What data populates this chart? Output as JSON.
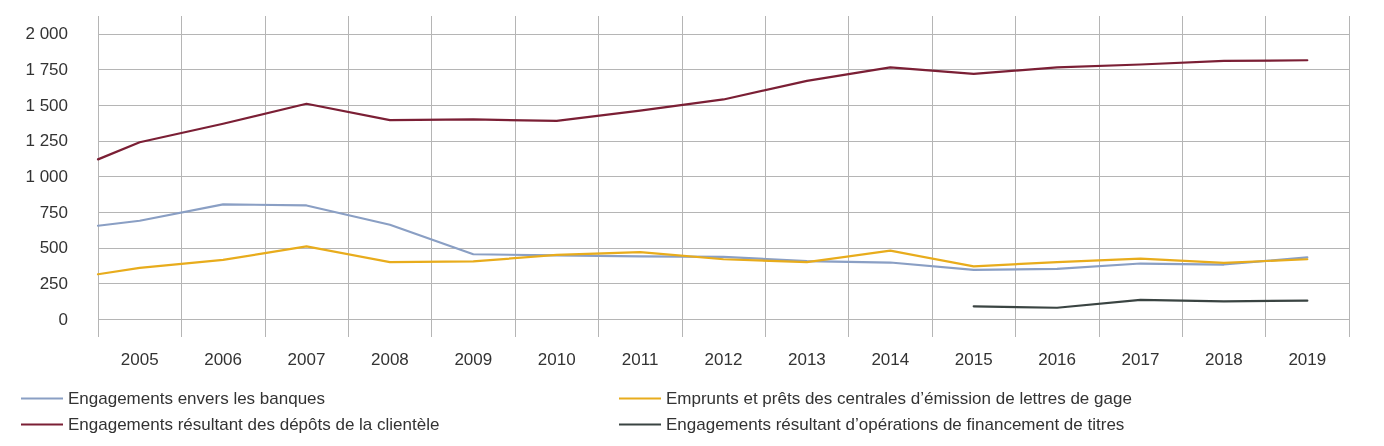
{
  "chart_data": {
    "type": "line",
    "x": [
      2004.5,
      2005,
      2006,
      2007,
      2008,
      2009,
      2010,
      2011,
      2012,
      2013,
      2014,
      2015,
      2016,
      2017,
      2018,
      2019
    ],
    "series": [
      {
        "name": "Engagements envers les banques",
        "color": "#8a9fc4",
        "values": [
          655,
          690,
          805,
          797,
          662,
          455,
          447,
          440,
          437,
          407,
          397,
          345,
          352,
          390,
          383,
          433
        ]
      },
      {
        "name": "Emprunts et prêts des centrales d’émission de lettres de gage",
        "color": "#e8ac1c",
        "values": [
          315,
          360,
          415,
          510,
          400,
          405,
          450,
          470,
          420,
          400,
          480,
          370,
          400,
          425,
          395,
          420
        ]
      },
      {
        "name": "Engagements résultant des dépôts de la clientèle",
        "color": "#7b1f35",
        "values": [
          1120,
          1240,
          1370,
          1510,
          1395,
          1400,
          1390,
          1462,
          1540,
          1670,
          1765,
          1720,
          1765,
          1785,
          1810,
          1815
        ]
      },
      {
        "name": "Engagements résultant d’opérations de financement de titres",
        "color": "#3a4442",
        "x": [
          2015,
          2016,
          2017,
          2018,
          2019
        ],
        "values": [
          90,
          80,
          135,
          125,
          130
        ]
      }
    ],
    "xlim": [
      2004.5,
      2019.5
    ],
    "xticks": [
      {
        "value": 2004.5,
        "label": null
      },
      {
        "value": 2005,
        "label": "2005"
      },
      {
        "value": 2005.5,
        "label": null
      },
      {
        "value": 2006,
        "label": "2006"
      },
      {
        "value": 2006.5,
        "label": null
      },
      {
        "value": 2007,
        "label": "2007"
      },
      {
        "value": 2007.5,
        "label": null
      },
      {
        "value": 2008,
        "label": "2008"
      },
      {
        "value": 2008.5,
        "label": null
      },
      {
        "value": 2009,
        "label": "2009"
      },
      {
        "value": 2009.5,
        "label": null
      },
      {
        "value": 2010,
        "label": "2010"
      },
      {
        "value": 2010.5,
        "label": null
      },
      {
        "value": 2011,
        "label": "2011"
      },
      {
        "value": 2011.5,
        "label": null
      },
      {
        "value": 2012,
        "label": "2012"
      },
      {
        "value": 2012.5,
        "label": null
      },
      {
        "value": 2013,
        "label": "2013"
      },
      {
        "value": 2013.5,
        "label": null
      },
      {
        "value": 2014,
        "label": "2014"
      },
      {
        "value": 2014.5,
        "label": null
      },
      {
        "value": 2015,
        "label": "2015"
      },
      {
        "value": 2015.5,
        "label": null
      },
      {
        "value": 2016,
        "label": "2016"
      },
      {
        "value": 2016.5,
        "label": null
      },
      {
        "value": 2017,
        "label": "2017"
      },
      {
        "value": 2017.5,
        "label": null
      },
      {
        "value": 2018,
        "label": "2018"
      },
      {
        "value": 2018.5,
        "label": null
      },
      {
        "value": 2019,
        "label": "2019"
      },
      {
        "value": 2019.5,
        "label": null
      }
    ],
    "ylim": [
      -125,
      2125
    ],
    "yticks": [
      0,
      250,
      500,
      750,
      {
        "value": 1000,
        "label": "1 000"
      },
      {
        "value": 1250,
        "label": "1 250"
      },
      {
        "value": 1500,
        "label": "1 500"
      },
      {
        "value": 1750,
        "label": "1 750"
      },
      {
        "value": 2000,
        "label": "2 000"
      }
    ],
    "grid": true,
    "legend": "bottom",
    "marker": "none",
    "line_style": "solid"
  }
}
